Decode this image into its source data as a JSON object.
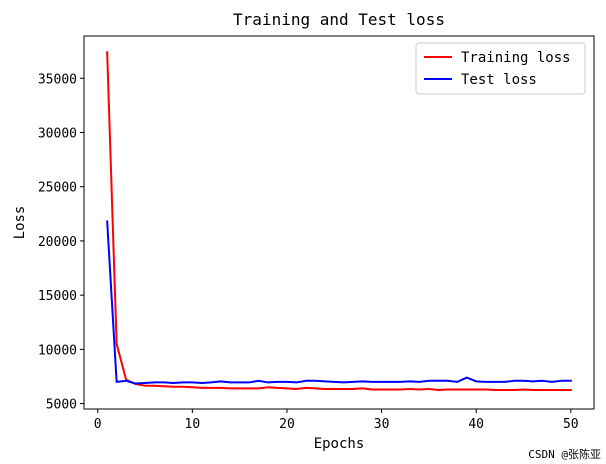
{
  "chart_data": {
    "type": "line",
    "title": "Training and Test loss",
    "xlabel": "Epochs",
    "ylabel": "Loss",
    "xlim": [
      -1.45,
      52.45
    ],
    "ylim": [
      4500,
      38900
    ],
    "xticks": [
      0,
      10,
      20,
      30,
      40,
      50
    ],
    "yticks": [
      5000,
      10000,
      15000,
      20000,
      25000,
      30000,
      35000
    ],
    "grid": false,
    "legend_position": "top-right",
    "series": [
      {
        "name": "Training loss",
        "color": "#ff0000",
        "x": [
          1,
          2,
          3,
          4,
          5,
          6,
          7,
          8,
          9,
          10,
          11,
          12,
          13,
          14,
          15,
          16,
          17,
          18,
          19,
          20,
          21,
          22,
          23,
          24,
          25,
          26,
          27,
          28,
          29,
          30,
          31,
          32,
          33,
          34,
          35,
          36,
          37,
          38,
          39,
          40,
          41,
          42,
          43,
          44,
          45,
          46,
          47,
          48,
          49,
          50
        ],
        "values": [
          37400,
          10500,
          7200,
          6800,
          6650,
          6650,
          6600,
          6550,
          6550,
          6500,
          6450,
          6450,
          6450,
          6400,
          6400,
          6400,
          6400,
          6500,
          6450,
          6400,
          6350,
          6450,
          6400,
          6350,
          6350,
          6350,
          6350,
          6400,
          6300,
          6300,
          6300,
          6300,
          6350,
          6300,
          6350,
          6250,
          6300,
          6300,
          6300,
          6300,
          6300,
          6250,
          6250,
          6250,
          6300,
          6250,
          6250,
          6250,
          6250,
          6250
        ]
      },
      {
        "name": "Test loss",
        "color": "#0000ff",
        "x": [
          1,
          2,
          3,
          4,
          5,
          6,
          7,
          8,
          9,
          10,
          11,
          12,
          13,
          14,
          15,
          16,
          17,
          18,
          19,
          20,
          21,
          22,
          23,
          24,
          25,
          26,
          27,
          28,
          29,
          30,
          31,
          32,
          33,
          34,
          35,
          36,
          37,
          38,
          39,
          40,
          41,
          42,
          43,
          44,
          45,
          46,
          47,
          48,
          49,
          50
        ],
        "values": [
          21800,
          7000,
          7100,
          6850,
          6900,
          6950,
          6950,
          6900,
          6950,
          6950,
          6900,
          6950,
          7050,
          6950,
          6950,
          6950,
          7100,
          6950,
          7000,
          7000,
          6950,
          7100,
          7100,
          7050,
          7000,
          6950,
          7000,
          7050,
          7000,
          7000,
          7000,
          7000,
          7050,
          7000,
          7100,
          7100,
          7100,
          7000,
          7400,
          7050,
          7000,
          7000,
          7000,
          7100,
          7100,
          7050,
          7100,
          7000,
          7100,
          7100
        ]
      }
    ]
  },
  "watermark": "CSDN @张陈亚"
}
